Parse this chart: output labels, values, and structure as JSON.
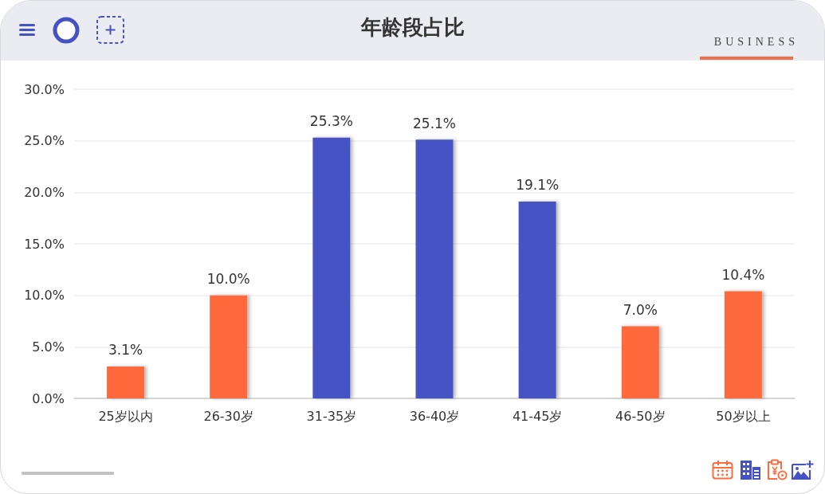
{
  "chart_data": {
    "type": "bar",
    "title": "年龄段占比",
    "annotations": [
      "BUSINESS"
    ],
    "categories": [
      "25岁以内",
      "26-30岁",
      "31-35岁",
      "36-40岁",
      "41-45岁",
      "46-50岁",
      "50岁以上"
    ],
    "values": [
      3.1,
      10.0,
      25.3,
      25.1,
      19.1,
      7.0,
      10.4
    ],
    "colors": [
      "#ff6b3d",
      "#ff6b3d",
      "#4652c2",
      "#4652c2",
      "#4652c2",
      "#ff6b3d",
      "#ff6b3d"
    ],
    "value_labels": [
      "3.1%",
      "10.0%",
      "25.3%",
      "25.1%",
      "19.1%",
      "7.0%",
      "10.4%"
    ],
    "ylim": [
      0,
      30
    ],
    "yticks": [
      {
        "value": 0,
        "label": "0.0%"
      },
      {
        "value": 5,
        "label": "5.0%"
      },
      {
        "value": 10,
        "label": "10.0%"
      },
      {
        "value": 15,
        "label": "15.0%"
      },
      {
        "value": 20,
        "label": "20.0%"
      },
      {
        "value": 25,
        "label": "25.0%"
      },
      {
        "value": 30,
        "label": "30.0%"
      }
    ],
    "grid": "y"
  }
}
